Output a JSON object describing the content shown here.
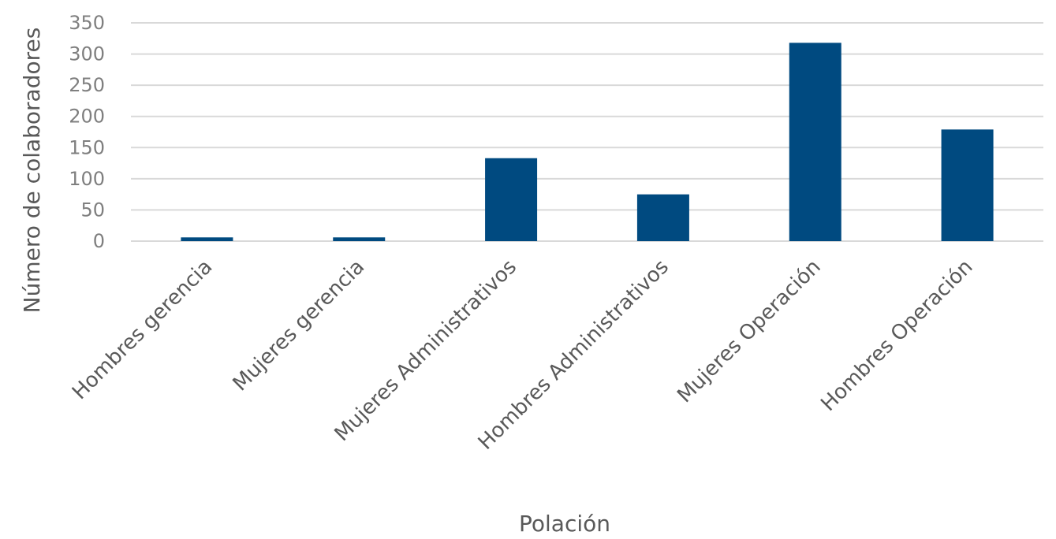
{
  "chart_data": {
    "type": "bar",
    "title": "",
    "xlabel": "Polación",
    "ylabel": "Número de colaboradores",
    "categories": [
      "Hombres gerencia",
      "Mujeres gerencia",
      "Mujeres Administrativos",
      "Hombres Administrativos",
      "Mujeres Operación",
      "Hombres Operación"
    ],
    "values": [
      6,
      6,
      133,
      75,
      318,
      179
    ],
    "ylim": [
      0,
      350
    ],
    "yticks": [
      0,
      50,
      100,
      150,
      200,
      250,
      300,
      350
    ],
    "grid": true,
    "legend": "none",
    "bar_color": "#004a80",
    "grid_color": "#d9d9d9"
  }
}
